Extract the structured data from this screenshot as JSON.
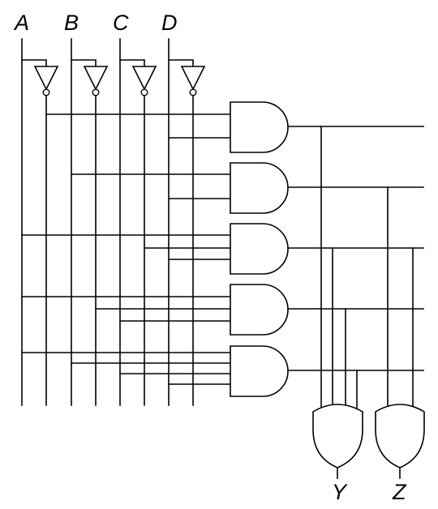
{
  "inputs": [
    "A",
    "B",
    "C",
    "D"
  ],
  "outputs": [
    "Y",
    "Z"
  ],
  "gates": {
    "inverters": 4,
    "and_gates": 5,
    "or_gates": 2
  }
}
